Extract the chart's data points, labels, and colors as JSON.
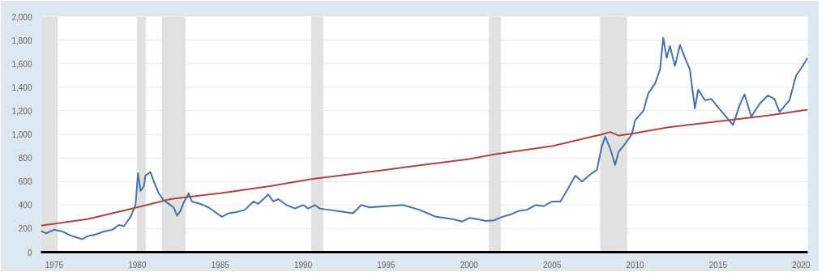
{
  "chart_data": {
    "type": "line",
    "xlim": [
      1974.2,
      2020.4
    ],
    "ylim": [
      0,
      2000
    ],
    "xticks": [
      1975,
      1980,
      1985,
      1990,
      1995,
      2000,
      2005,
      2010,
      2015,
      2020
    ],
    "yticks": [
      {
        "value": 0,
        "label": "0"
      },
      {
        "value": 200,
        "label": "200"
      },
      {
        "value": 400,
        "label": "400"
      },
      {
        "value": 600,
        "label": "600"
      },
      {
        "value": 800,
        "label": "800"
      },
      {
        "value": 1000,
        "label": "1,000"
      },
      {
        "value": 1200,
        "label": "1,200"
      },
      {
        "value": 1400,
        "label": "1,400"
      },
      {
        "value": 1600,
        "label": "1,600"
      },
      {
        "value": 1800,
        "label": "1,800"
      },
      {
        "value": 2000,
        "label": "2,000"
      }
    ],
    "grid": "y",
    "marker": "none",
    "line_style": "solid",
    "bands": [
      {
        "axis": "x",
        "from": 1974.2,
        "to": 1975.2,
        "color": "#e1e1e1"
      },
      {
        "axis": "x",
        "from": 1980.0,
        "to": 1980.5,
        "color": "#e1e1e1"
      },
      {
        "axis": "x",
        "from": 1981.5,
        "to": 1982.9,
        "color": "#e1e1e1"
      },
      {
        "axis": "x",
        "from": 1990.5,
        "to": 1991.2,
        "color": "#e1e1e1"
      },
      {
        "axis": "x",
        "from": 2001.2,
        "to": 2001.9,
        "color": "#e1e1e1"
      },
      {
        "axis": "x",
        "from": 2007.9,
        "to": 2009.5,
        "color": "#e1e1e1"
      }
    ],
    "series": [
      {
        "color": "#4572a7",
        "x": [
          1974.2,
          1974.5,
          1975,
          1975.5,
          1976,
          1976.7,
          1977,
          1977.5,
          1978,
          1978.5,
          1978.9,
          1979.2,
          1979.6,
          1979.9,
          1980.05,
          1980.2,
          1980.4,
          1980.5,
          1980.8,
          1981.0,
          1981.3,
          1981.6,
          1981.9,
          1982.2,
          1982.4,
          1982.6,
          1982.8,
          1983.1,
          1983.3,
          1983.8,
          1984.3,
          1984.8,
          1985.1,
          1985.5,
          1986,
          1986.5,
          1987,
          1987.3,
          1987.9,
          1988.2,
          1988.5,
          1989,
          1989.5,
          1990,
          1990.3,
          1990.7,
          1991,
          1991.5,
          1992,
          1992.5,
          1993,
          1993.5,
          1994,
          1995,
          1996,
          1997,
          1997.5,
          1998,
          1999,
          1999.6,
          2000,
          2000.5,
          2001,
          2001.5,
          2002,
          2002.5,
          2003,
          2003.5,
          2004,
          2004.5,
          2005,
          2005.5,
          2006,
          2006.4,
          2006.8,
          2007.3,
          2007.7,
          2008.0,
          2008.2,
          2008.5,
          2008.8,
          2009.0,
          2009.4,
          2009.8,
          2010.0,
          2010.5,
          2010.8,
          2011.2,
          2011.5,
          2011.7,
          2011.9,
          2012.1,
          2012.4,
          2012.7,
          2013.0,
          2013.3,
          2013.6,
          2013.8,
          2014.2,
          2014.6,
          2015.0,
          2015.3,
          2015.9,
          2016.3,
          2016.6,
          2017.0,
          2017.5,
          2018.0,
          2018.4,
          2018.7,
          2019.3,
          2019.7,
          2020.0,
          2020.4
        ],
        "values": [
          180,
          160,
          190,
          175,
          140,
          110,
          135,
          150,
          175,
          190,
          230,
          220,
          300,
          400,
          670,
          520,
          560,
          650,
          680,
          600,
          500,
          440,
          410,
          380,
          310,
          350,
          420,
          500,
          430,
          410,
          380,
          330,
          300,
          330,
          340,
          360,
          430,
          410,
          490,
          430,
          450,
          400,
          370,
          400,
          370,
          400,
          370,
          360,
          350,
          340,
          330,
          400,
          380,
          390,
          400,
          360,
          330,
          300,
          280,
          260,
          290,
          280,
          265,
          270,
          300,
          320,
          350,
          360,
          400,
          390,
          430,
          430,
          550,
          650,
          600,
          660,
          700,
          900,
          980,
          880,
          740,
          850,
          920,
          1000,
          1120,
          1200,
          1350,
          1430,
          1550,
          1820,
          1650,
          1750,
          1580,
          1760,
          1650,
          1550,
          1220,
          1380,
          1290,
          1300,
          1230,
          1180,
          1080,
          1250,
          1340,
          1150,
          1260,
          1330,
          1300,
          1190,
          1290,
          1500,
          1560,
          1650
        ]
      },
      {
        "color": "#aa4643",
        "x": [
          1974.2,
          1977,
          1980,
          1982,
          1985,
          1988,
          1990.5,
          1995,
          2000,
          2001.5,
          2005,
          2008,
          2008.5,
          2009,
          2010,
          2012,
          2015,
          2018,
          2020.4
        ],
        "values": [
          225,
          280,
          380,
          450,
          500,
          560,
          620,
          700,
          790,
          830,
          900,
          1000,
          1020,
          990,
          1010,
          1060,
          1110,
          1160,
          1210
        ]
      }
    ]
  }
}
